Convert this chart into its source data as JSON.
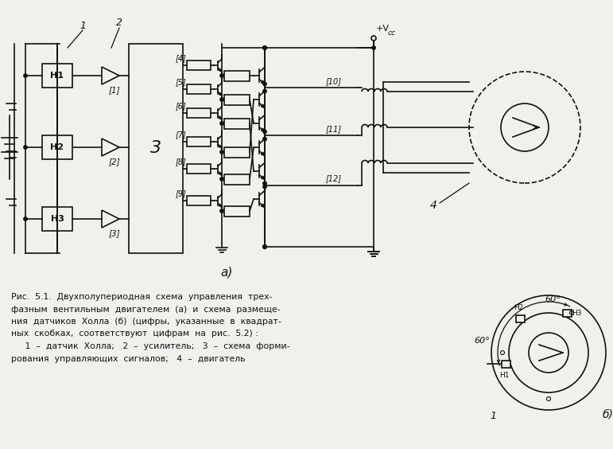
{
  "bg_color": "#f2f0eb",
  "line_color": "#111111",
  "caption_line1": "Рис.  5.1.  Двухполупериодная  схема  управления  трех-",
  "caption_line2": "фазным  вентильным  двигателем  (а)  и  схема  размеще-",
  "caption_line3": "ния  датчиков  Холла  (б)  (цифры,  указанные  в  квадрат-",
  "caption_line4": "ных  скобках,  соответствуют  цифрам  на  рис.  5.2) :",
  "caption_line5": "     1  –  датчик  Холла;   2  –  усилитель;   3  –  схема  форми-",
  "caption_line6": "рования  управляющих  сигналов;   4  –  двигатель"
}
